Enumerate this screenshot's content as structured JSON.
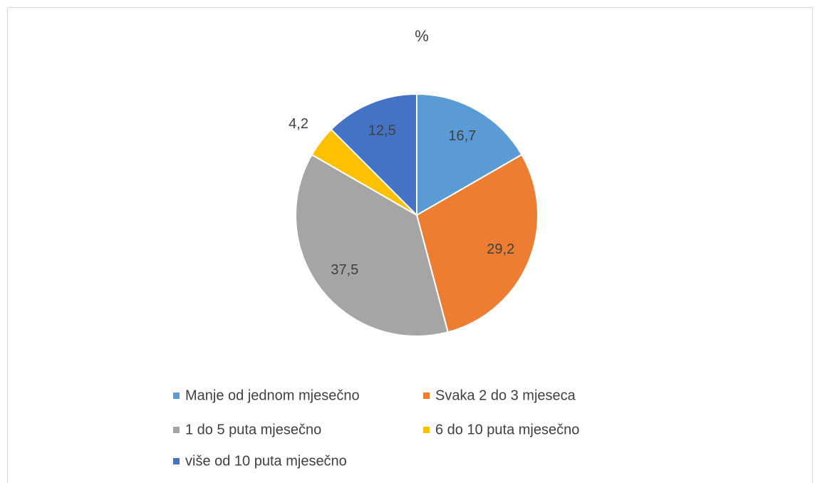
{
  "chart_data": {
    "type": "pie",
    "title": "%",
    "categories": [
      "Manje od jednom mjesečno",
      "Svaka 2 do 3 mjeseca",
      "1 do 5 puta mjesečno",
      "6 do 10 puta mjesečno",
      "više od 10 puta mjesečno"
    ],
    "values": [
      16.7,
      29.2,
      37.5,
      4.2,
      12.5
    ],
    "value_labels": [
      "16,7",
      "29,2",
      "37,5",
      "4,2",
      "12,5"
    ],
    "colors": [
      "#5b9bd5",
      "#ed7d31",
      "#a5a5a5",
      "#ffc000",
      "#4472c4"
    ],
    "legend": "bottom"
  }
}
